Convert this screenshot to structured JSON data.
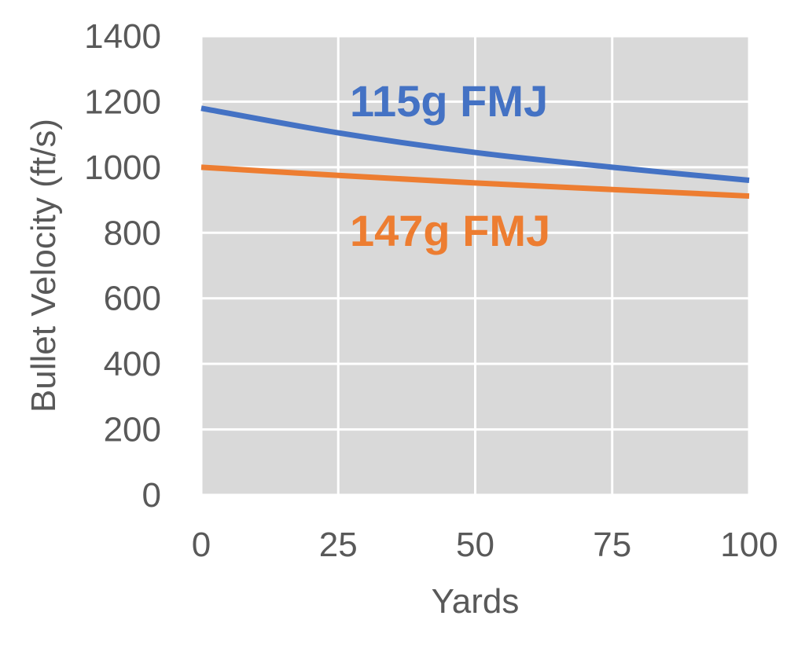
{
  "chart_data": {
    "type": "line",
    "title": "",
    "xlabel": "Yards",
    "ylabel": "Bullet Velocity (ft/s)",
    "xlim": [
      0,
      100
    ],
    "ylim": [
      0,
      1400
    ],
    "x_ticks": [
      "0",
      "25",
      "50",
      "75",
      "100"
    ],
    "y_ticks": [
      "0",
      "200",
      "400",
      "600",
      "800",
      "1000",
      "1200",
      "1400"
    ],
    "grid": true,
    "plot_background": "#d9d9d9",
    "grid_color": "#ffffff",
    "legend": "none",
    "x": [
      0,
      25,
      50,
      75,
      100
    ],
    "series": [
      {
        "name": "115g FMJ",
        "color": "#4472c4",
        "values": [
          1180,
          1105,
          1045,
          1000,
          960
        ]
      },
      {
        "name": "147g FMJ",
        "color": "#ed7d31",
        "values": [
          1000,
          975,
          952,
          932,
          912
        ]
      }
    ]
  }
}
